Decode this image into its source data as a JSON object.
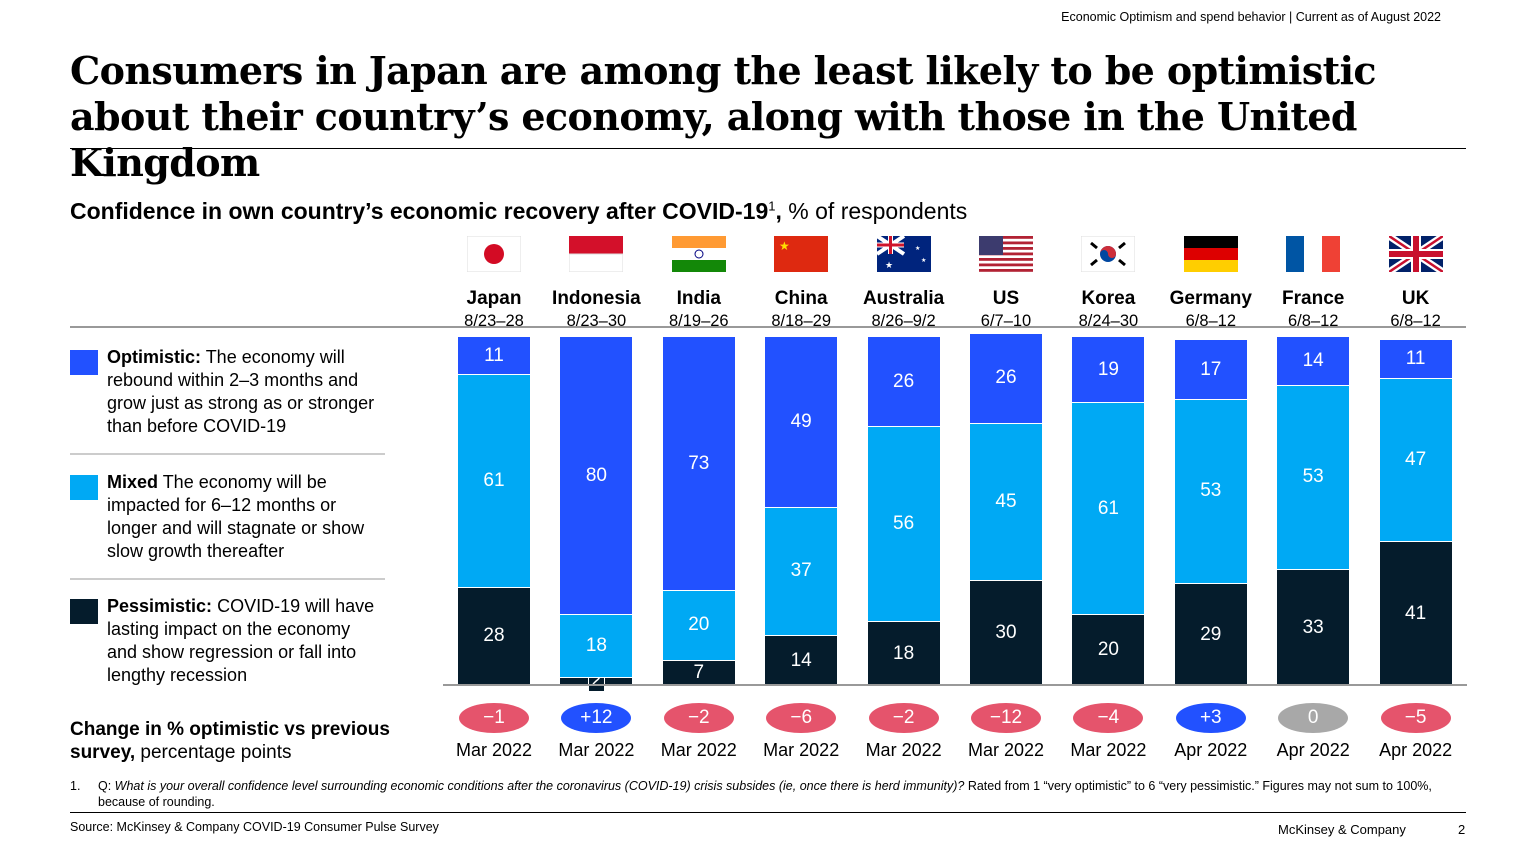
{
  "header": {
    "tracker": "Economic Optimism and spend behavior | Current as of August 2022",
    "title": "Consumers in Japan are among the least likely to be optimistic about their country’s economy, along with those in the United Kingdom"
  },
  "colors": {
    "optimistic": "#2251ff",
    "mixed": "#00a9f4",
    "pessimistic": "#051c2c",
    "negative": "#e5546c",
    "positive": "#2251ff",
    "neutral": "#a8a8a8"
  },
  "chart_data": {
    "type": "bar",
    "stacked": true,
    "title": "Confidence in own country’s economic recovery after COVID-19",
    "title_footnote": "1",
    "unit": "% of respondents",
    "categories": [
      "Japan",
      "Indonesia",
      "India",
      "China",
      "Australia",
      "US",
      "Korea",
      "Germany",
      "France",
      "UK"
    ],
    "dates": [
      "8/23–28",
      "8/23–30",
      "8/19–26",
      "8/18–29",
      "8/26–9/2",
      "6/7–10",
      "8/24–30",
      "6/8–12",
      "6/8–12",
      "6/8–12"
    ],
    "flags": [
      "japan-flag",
      "indonesia-flag",
      "india-flag",
      "china-flag",
      "australia-flag",
      "us-flag",
      "korea-flag",
      "germany-flag",
      "france-flag",
      "uk-flag"
    ],
    "series": [
      {
        "name": "Optimistic",
        "values": [
          11,
          80,
          73,
          49,
          26,
          26,
          19,
          17,
          14,
          11
        ]
      },
      {
        "name": "Mixed",
        "values": [
          61,
          18,
          20,
          37,
          56,
          45,
          61,
          53,
          53,
          47
        ]
      },
      {
        "name": "Pessimistic",
        "values": [
          28,
          2,
          7,
          14,
          18,
          30,
          20,
          29,
          33,
          41
        ]
      }
    ],
    "change": {
      "labels": [
        "−1",
        "+12",
        "−2",
        "−6",
        "−2",
        "−12",
        "−4",
        "+3",
        "0",
        "−5"
      ],
      "values": [
        -1,
        12,
        -2,
        -6,
        -2,
        -12,
        -4,
        3,
        0,
        -5
      ],
      "previous": [
        "Mar 2022",
        "Mar 2022",
        "Mar 2022",
        "Mar 2022",
        "Mar 2022",
        "Mar 2022",
        "Mar 2022",
        "Apr 2022",
        "Apr 2022",
        "Apr 2022"
      ]
    }
  },
  "legend": [
    {
      "bold": "Optimistic:",
      "text": " The economy will rebound within 2–3 months and grow just as strong as or stronger than before COVID-19"
    },
    {
      "bold": "Mixed",
      "text": " The economy will be impacted for 6–12 months or longer and will stagnate or show slow growth thereafter"
    },
    {
      "bold": "Pessimistic:",
      "text": " COVID-19 will have lasting impact on the economy and show regression or fall into lengthy recession"
    }
  ],
  "change_label": {
    "bold": "Change in % optimistic vs previous survey,",
    "text": " percentage points"
  },
  "footer": {
    "footnote_num": "1.",
    "footnote_q": "Q: ",
    "footnote_italic": "What is your overall confidence level surrounding economic conditions after the coronavirus (COVID-19) crisis subsides (ie, once there is herd immunity)?",
    "footnote_rest": " Rated from 1 “very optimistic” to 6 “very pessimistic.” Figures may not sum to 100%, because of rounding.",
    "source": "Source: McKinsey & Company COVID-19 Consumer Pulse Survey",
    "brand": "McKinsey & Company",
    "page": "2"
  }
}
